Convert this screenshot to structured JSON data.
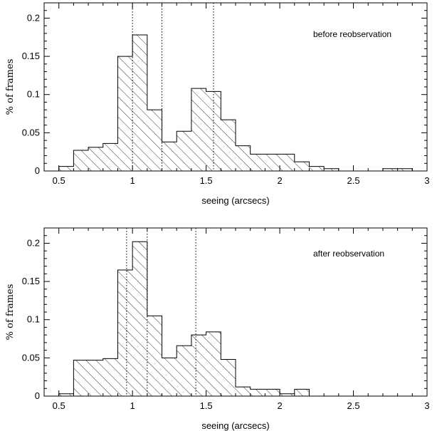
{
  "chart_data": [
    {
      "type": "bar",
      "annotation": "before reobservation",
      "xlabel": "seeing (arcsecs)",
      "ylabel": "% of frames",
      "xlim": [
        0.4,
        3.0
      ],
      "ylim": [
        0,
        0.22
      ],
      "xticks": [
        "0.5",
        "1",
        "1.5",
        "2",
        "2.5",
        "3"
      ],
      "xtick_values": [
        0.5,
        1,
        1.5,
        2,
        2.5,
        3
      ],
      "yticks": [
        "0",
        "0.05",
        "0.1",
        "0.15",
        "0.2"
      ],
      "ytick_values": [
        0,
        0.05,
        0.1,
        0.15,
        0.2
      ],
      "bin_width": 0.1,
      "bins_start": [
        0.5,
        0.6,
        0.7,
        0.8,
        0.9,
        1.0,
        1.1,
        1.2,
        1.3,
        1.4,
        1.5,
        1.6,
        1.7,
        1.8,
        1.9,
        2.0,
        2.1,
        2.2,
        2.3,
        2.4,
        2.5,
        2.6,
        2.7,
        2.8
      ],
      "values": [
        0.006,
        0.027,
        0.031,
        0.036,
        0.15,
        0.178,
        0.08,
        0.038,
        0.052,
        0.108,
        0.104,
        0.067,
        0.033,
        0.022,
        0.022,
        0.022,
        0.012,
        0.006,
        0.003,
        0,
        0,
        0,
        0.003,
        0.003
      ],
      "reference_lines": [
        1.0,
        1.2,
        1.55
      ],
      "grid": false
    },
    {
      "type": "bar",
      "annotation": "after reobservation",
      "xlabel": "seeing (arcsecs)",
      "ylabel": "% of frames",
      "xlim": [
        0.4,
        3.0
      ],
      "ylim": [
        0,
        0.22
      ],
      "xticks": [
        "0.5",
        "1",
        "1.5",
        "2",
        "2.5",
        "3"
      ],
      "xtick_values": [
        0.5,
        1,
        1.5,
        2,
        2.5,
        3
      ],
      "yticks": [
        "0",
        "0.05",
        "0.1",
        "0.15",
        "0.2"
      ],
      "ytick_values": [
        0,
        0.05,
        0.1,
        0.15,
        0.2
      ],
      "bin_width": 0.1,
      "bins_start": [
        0.5,
        0.6,
        0.7,
        0.8,
        0.9,
        1.0,
        1.1,
        1.2,
        1.3,
        1.4,
        1.5,
        1.6,
        1.7,
        1.8,
        1.9,
        2.0,
        2.1
      ],
      "values": [
        0.003,
        0.047,
        0.047,
        0.049,
        0.165,
        0.202,
        0.105,
        0.05,
        0.066,
        0.08,
        0.084,
        0.048,
        0.012,
        0.009,
        0.009,
        0.003,
        0.009
      ],
      "reference_lines": [
        0.96,
        1.1,
        1.43
      ],
      "grid": false
    }
  ]
}
